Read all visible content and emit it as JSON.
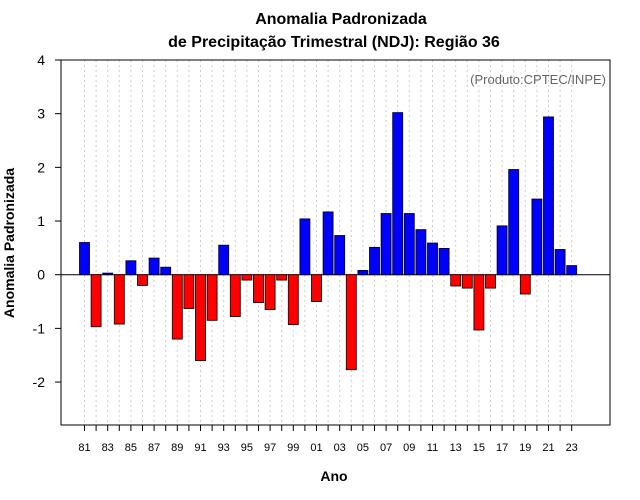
{
  "chart_data": {
    "type": "bar",
    "title": "Anomalia Padronizada",
    "subtitle": "de Precipitação Trimestral (NDJ): Região 36",
    "xlabel": "Ano",
    "ylabel": "Anomalia Padronizada",
    "annotation": "(Produto:CPTEC/INPE)",
    "ylim": [
      -2.8,
      4.0
    ],
    "yticks": [
      4,
      3,
      2,
      1,
      0,
      -1,
      -2
    ],
    "grid": true,
    "colors": {
      "positive": "#0000ff",
      "negative": "#ff0000",
      "grid": "#cccccc"
    },
    "categories": [
      "81",
      "82",
      "83",
      "84",
      "85",
      "86",
      "87",
      "88",
      "89",
      "90",
      "91",
      "92",
      "93",
      "94",
      "95",
      "96",
      "97",
      "98",
      "99",
      "00",
      "01",
      "02",
      "03",
      "04",
      "05",
      "06",
      "07",
      "08",
      "09",
      "10",
      "11",
      "12",
      "13",
      "14",
      "15",
      "16",
      "17",
      "18",
      "19",
      "20",
      "21",
      "22",
      "23"
    ],
    "xtick_labels": [
      "81",
      "83",
      "85",
      "87",
      "89",
      "91",
      "93",
      "95",
      "97",
      "99",
      "01",
      "03",
      "05",
      "07",
      "09",
      "11",
      "13",
      "15",
      "17",
      "19",
      "21",
      "23"
    ],
    "values": [
      0.6,
      -0.97,
      0.03,
      -0.92,
      0.26,
      -0.2,
      0.31,
      0.14,
      -1.2,
      -0.63,
      -1.6,
      -0.85,
      0.55,
      -0.78,
      -0.1,
      -0.52,
      -0.65,
      -0.1,
      -0.93,
      1.04,
      -0.5,
      1.17,
      0.73,
      -1.77,
      0.08,
      0.51,
      1.14,
      3.02,
      1.14,
      0.84,
      0.59,
      0.49,
      -0.21,
      -0.25,
      -1.03,
      -0.25,
      0.91,
      1.96,
      -0.36,
      1.41,
      2.94,
      0.47,
      0.17
    ]
  }
}
